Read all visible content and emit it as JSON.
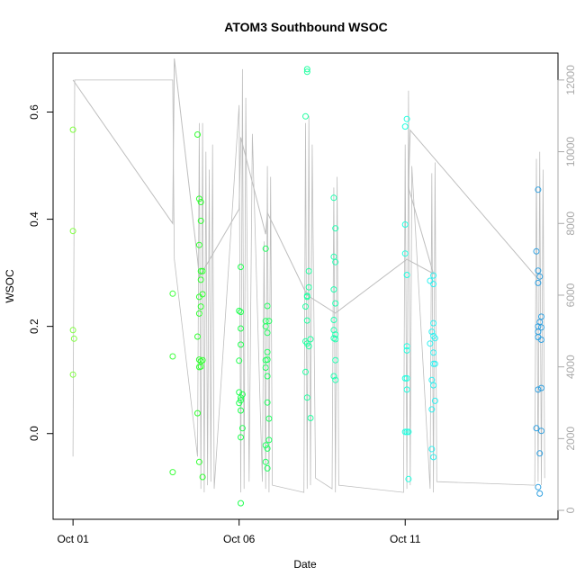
{
  "chart_data": {
    "type": "scatter",
    "title": "ATOM3 Southbound WSOC",
    "xlabel": "Date",
    "ylabel": "WSOC",
    "x_tick_labels": [
      "Oct 01",
      "Oct 06",
      "Oct 11"
    ],
    "x_tick_values": [
      0,
      5,
      10
    ],
    "xlim": [
      -0.6,
      14.6
    ],
    "y_ticks": [
      0.0,
      0.2,
      0.4,
      0.6
    ],
    "ylim": [
      -0.16,
      0.71
    ],
    "y2_ticks": [
      0,
      2000,
      4000,
      6000,
      8000,
      10000,
      12000
    ],
    "y2lim": [
      -250,
      12750
    ],
    "y2_color": "#a9a9a9",
    "altitude_line_color": "#bebebe",
    "points": [
      [
        0.0,
        0.567,
        "#80ff40"
      ],
      [
        0.0,
        0.378,
        "#80ff40"
      ],
      [
        0.0,
        0.193,
        "#80ff40"
      ],
      [
        0.03,
        0.177,
        "#80ff40"
      ],
      [
        0.0,
        0.11,
        "#80ff40"
      ],
      [
        3.0,
        0.261,
        "#40ff40"
      ],
      [
        3.0,
        0.144,
        "#40ff40"
      ],
      [
        3.0,
        -0.072,
        "#40ff40"
      ],
      [
        3.75,
        0.558,
        "#30ff30"
      ],
      [
        3.8,
        0.438,
        "#30ff30"
      ],
      [
        3.85,
        0.432,
        "#30ff30"
      ],
      [
        3.85,
        0.397,
        "#30ff30"
      ],
      [
        3.8,
        0.352,
        "#30ff30"
      ],
      [
        3.85,
        0.303,
        "#30ff30"
      ],
      [
        3.9,
        0.303,
        "#30ff30"
      ],
      [
        3.85,
        0.287,
        "#30ff30"
      ],
      [
        3.9,
        0.26,
        "#30ff30"
      ],
      [
        3.8,
        0.255,
        "#30ff30"
      ],
      [
        3.85,
        0.237,
        "#30ff30"
      ],
      [
        3.8,
        0.224,
        "#30ff30"
      ],
      [
        3.75,
        0.181,
        "#30ff30"
      ],
      [
        3.8,
        0.138,
        "#30ff30"
      ],
      [
        3.85,
        0.135,
        "#30ff30"
      ],
      [
        3.9,
        0.137,
        "#30ff30"
      ],
      [
        3.8,
        0.124,
        "#30ff30"
      ],
      [
        3.85,
        0.125,
        "#30ff30"
      ],
      [
        3.75,
        0.038,
        "#30ff30"
      ],
      [
        3.8,
        -0.053,
        "#30ff30"
      ],
      [
        3.9,
        -0.081,
        "#30ff30"
      ],
      [
        5.05,
        0.311,
        "#20ff50"
      ],
      [
        5.0,
        0.229,
        "#20ff50"
      ],
      [
        5.05,
        0.227,
        "#20ff50"
      ],
      [
        5.05,
        0.196,
        "#20ff50"
      ],
      [
        5.05,
        0.166,
        "#20ff50"
      ],
      [
        5.0,
        0.136,
        "#20ff50"
      ],
      [
        5.0,
        0.077,
        "#20ff50"
      ],
      [
        5.1,
        0.073,
        "#20ff50"
      ],
      [
        5.05,
        0.067,
        "#20ff50"
      ],
      [
        5.0,
        0.057,
        "#20ff50"
      ],
      [
        5.05,
        0.062,
        "#20ff50"
      ],
      [
        5.05,
        0.043,
        "#20ff50"
      ],
      [
        5.1,
        0.01,
        "#20ff50"
      ],
      [
        5.05,
        -0.007,
        "#20ff50"
      ],
      [
        5.05,
        -0.13,
        "#20ff50"
      ],
      [
        5.8,
        0.345,
        "#20ff60"
      ],
      [
        5.85,
        0.238,
        "#20ff60"
      ],
      [
        5.8,
        0.21,
        "#20ff60"
      ],
      [
        5.9,
        0.21,
        "#20ff60"
      ],
      [
        5.8,
        0.2,
        "#20ff60"
      ],
      [
        5.85,
        0.188,
        "#20ff60"
      ],
      [
        5.85,
        0.152,
        "#20ff60"
      ],
      [
        5.8,
        0.137,
        "#20ff60"
      ],
      [
        5.85,
        0.138,
        "#20ff60"
      ],
      [
        5.8,
        0.123,
        "#20ff60"
      ],
      [
        5.85,
        0.107,
        "#20ff60"
      ],
      [
        5.85,
        0.058,
        "#20ff60"
      ],
      [
        5.9,
        0.028,
        "#20ff60"
      ],
      [
        5.9,
        -0.012,
        "#20ff60"
      ],
      [
        5.8,
        -0.022,
        "#20ff60"
      ],
      [
        5.85,
        -0.028,
        "#20ff60"
      ],
      [
        5.8,
        -0.053,
        "#20ff60"
      ],
      [
        5.85,
        -0.065,
        "#20ff60"
      ],
      [
        7.05,
        0.68,
        "#20ffa0"
      ],
      [
        7.05,
        0.675,
        "#20ffa0"
      ],
      [
        7.0,
        0.592,
        "#20ffa0"
      ],
      [
        7.1,
        0.303,
        "#20ffa0"
      ],
      [
        7.1,
        0.273,
        "#20ffa0"
      ],
      [
        7.05,
        0.257,
        "#20ffa0"
      ],
      [
        7.05,
        0.255,
        "#20ffa0"
      ],
      [
        7.0,
        0.237,
        "#20ffa0"
      ],
      [
        7.05,
        0.211,
        "#20ffa0"
      ],
      [
        7.0,
        0.172,
        "#20ffa0"
      ],
      [
        7.05,
        0.168,
        "#20ffa0"
      ],
      [
        7.1,
        0.163,
        "#20ffa0"
      ],
      [
        7.15,
        0.176,
        "#20ffa0"
      ],
      [
        7.0,
        0.115,
        "#20ffa0"
      ],
      [
        7.05,
        0.067,
        "#20ffa0"
      ],
      [
        7.15,
        0.029,
        "#20ffa0"
      ],
      [
        7.85,
        0.44,
        "#20ffb0"
      ],
      [
        7.9,
        0.383,
        "#20ffb0"
      ],
      [
        7.85,
        0.33,
        "#20ffb0"
      ],
      [
        7.9,
        0.32,
        "#20ffb0"
      ],
      [
        7.85,
        0.269,
        "#20ffb0"
      ],
      [
        7.9,
        0.243,
        "#20ffb0"
      ],
      [
        7.85,
        0.212,
        "#20ffb0"
      ],
      [
        7.85,
        0.193,
        "#20ffb0"
      ],
      [
        7.9,
        0.185,
        "#20ffb0"
      ],
      [
        7.85,
        0.178,
        "#20ffb0"
      ],
      [
        7.9,
        0.176,
        "#20ffb0"
      ],
      [
        7.9,
        0.137,
        "#20ffb0"
      ],
      [
        7.85,
        0.107,
        "#20ffb0"
      ],
      [
        7.9,
        0.1,
        "#20ffb0"
      ],
      [
        10.05,
        0.587,
        "#20ffe0"
      ],
      [
        10.0,
        0.573,
        "#20ffe0"
      ],
      [
        10.0,
        0.39,
        "#20ffe0"
      ],
      [
        10.0,
        0.336,
        "#20ffe0"
      ],
      [
        10.05,
        0.296,
        "#20ffe0"
      ],
      [
        10.05,
        0.163,
        "#20ffe0"
      ],
      [
        10.05,
        0.155,
        "#20ffe0"
      ],
      [
        10.0,
        0.103,
        "#20ffe0"
      ],
      [
        10.05,
        0.103,
        "#20ffe0"
      ],
      [
        10.05,
        0.082,
        "#20ffe0"
      ],
      [
        10.0,
        0.003,
        "#20ffe0"
      ],
      [
        10.05,
        0.003,
        "#20ffe0"
      ],
      [
        10.1,
        0.003,
        "#20ffe0"
      ],
      [
        10.1,
        -0.085,
        "#20ffe0"
      ],
      [
        10.75,
        0.285,
        "#30f0f0"
      ],
      [
        10.85,
        0.295,
        "#30f0f0"
      ],
      [
        10.85,
        0.279,
        "#30f0f0"
      ],
      [
        10.85,
        0.206,
        "#30f0f0"
      ],
      [
        10.8,
        0.19,
        "#30f0f0"
      ],
      [
        10.85,
        0.182,
        "#30f0f0"
      ],
      [
        10.9,
        0.178,
        "#30f0f0"
      ],
      [
        10.75,
        0.168,
        "#30f0f0"
      ],
      [
        10.85,
        0.151,
        "#30f0f0"
      ],
      [
        10.85,
        0.13,
        "#30f0f0"
      ],
      [
        10.9,
        0.13,
        "#30f0f0"
      ],
      [
        10.8,
        0.1,
        "#30f0f0"
      ],
      [
        10.85,
        0.09,
        "#30f0f0"
      ],
      [
        10.9,
        0.061,
        "#30f0f0"
      ],
      [
        10.8,
        0.045,
        "#30f0f0"
      ],
      [
        10.8,
        -0.029,
        "#30f0f0"
      ],
      [
        10.85,
        -0.044,
        "#30f0f0"
      ],
      [
        14.0,
        0.455,
        "#30a0e0"
      ],
      [
        13.95,
        0.34,
        "#30a0e0"
      ],
      [
        14.0,
        0.304,
        "#30a0e0"
      ],
      [
        14.05,
        0.293,
        "#30a0e0"
      ],
      [
        14.0,
        0.281,
        "#30a0e0"
      ],
      [
        14.1,
        0.218,
        "#30a0e0"
      ],
      [
        14.05,
        0.208,
        "#30a0e0"
      ],
      [
        14.0,
        0.2,
        "#30a0e0"
      ],
      [
        14.1,
        0.198,
        "#30a0e0"
      ],
      [
        14.0,
        0.19,
        "#30a0e0"
      ],
      [
        14.0,
        0.18,
        "#30a0e0"
      ],
      [
        14.1,
        0.175,
        "#30a0e0"
      ],
      [
        14.0,
        0.082,
        "#30a0e0"
      ],
      [
        14.1,
        0.085,
        "#30a0e0"
      ],
      [
        13.95,
        0.01,
        "#30a0e0"
      ],
      [
        14.1,
        0.005,
        "#30a0e0"
      ],
      [
        14.05,
        -0.037,
        "#30a0e0"
      ],
      [
        14.0,
        -0.1,
        "#30a0e0"
      ],
      [
        14.05,
        -0.112,
        "#30a0e0"
      ]
    ],
    "altitude_envelope": [
      [
        0.0,
        1500
      ],
      [
        0.05,
        12000
      ],
      [
        0.1,
        12000
      ],
      [
        3.0,
        12000
      ],
      [
        3.05,
        7000
      ],
      [
        3.75,
        1500
      ],
      [
        3.8,
        10800
      ],
      [
        3.85,
        600
      ],
      [
        3.9,
        10800
      ],
      [
        3.95,
        500
      ],
      [
        4.0,
        10000
      ],
      [
        4.05,
        700
      ],
      [
        4.1,
        9500
      ],
      [
        4.15,
        800
      ],
      [
        4.2,
        10200
      ],
      [
        4.25,
        600
      ],
      [
        5.0,
        11300
      ],
      [
        5.05,
        500
      ],
      [
        5.1,
        12300
      ],
      [
        5.15,
        600
      ],
      [
        5.2,
        11500
      ],
      [
        5.3,
        800
      ],
      [
        5.4,
        10500
      ],
      [
        5.7,
        800
      ],
      [
        5.75,
        7500
      ],
      [
        5.8,
        600
      ],
      [
        5.85,
        9600
      ],
      [
        5.9,
        500
      ],
      [
        5.95,
        9300
      ],
      [
        6.0,
        700
      ],
      [
        6.95,
        500
      ],
      [
        7.0,
        10800
      ],
      [
        7.05,
        600
      ],
      [
        7.1,
        11000
      ],
      [
        7.15,
        700
      ],
      [
        7.2,
        10200
      ],
      [
        7.3,
        900
      ],
      [
        7.8,
        600
      ],
      [
        7.85,
        9000
      ],
      [
        7.9,
        500
      ],
      [
        7.95,
        9300
      ],
      [
        8.0,
        700
      ],
      [
        9.95,
        500
      ],
      [
        10.0,
        10200
      ],
      [
        10.05,
        600
      ],
      [
        10.1,
        11700
      ],
      [
        10.15,
        700
      ],
      [
        10.2,
        9600
      ],
      [
        10.75,
        600
      ],
      [
        10.8,
        9400
      ],
      [
        10.85,
        500
      ],
      [
        10.9,
        9700
      ],
      [
        10.95,
        800
      ],
      [
        13.9,
        700
      ],
      [
        13.95,
        9800
      ],
      [
        14.0,
        800
      ],
      [
        14.05,
        10000
      ],
      [
        14.1,
        700
      ],
      [
        14.15,
        9500
      ],
      [
        14.2,
        900
      ]
    ],
    "altitude_path": [
      [
        0.0,
        12000
      ],
      [
        3.0,
        8000
      ],
      [
        3.05,
        12600
      ],
      [
        3.75,
        7000
      ],
      [
        3.8,
        6500
      ],
      [
        5.0,
        8400
      ],
      [
        5.05,
        10400
      ],
      [
        5.8,
        7700
      ],
      [
        5.85,
        8300
      ],
      [
        7.05,
        6000
      ],
      [
        7.9,
        5500
      ],
      [
        10.05,
        7000
      ],
      [
        10.85,
        6600
      ],
      [
        10.1,
        9000
      ],
      [
        10.15,
        10600
      ],
      [
        13.95,
        6500
      ],
      [
        14.0,
        6600
      ]
    ]
  }
}
